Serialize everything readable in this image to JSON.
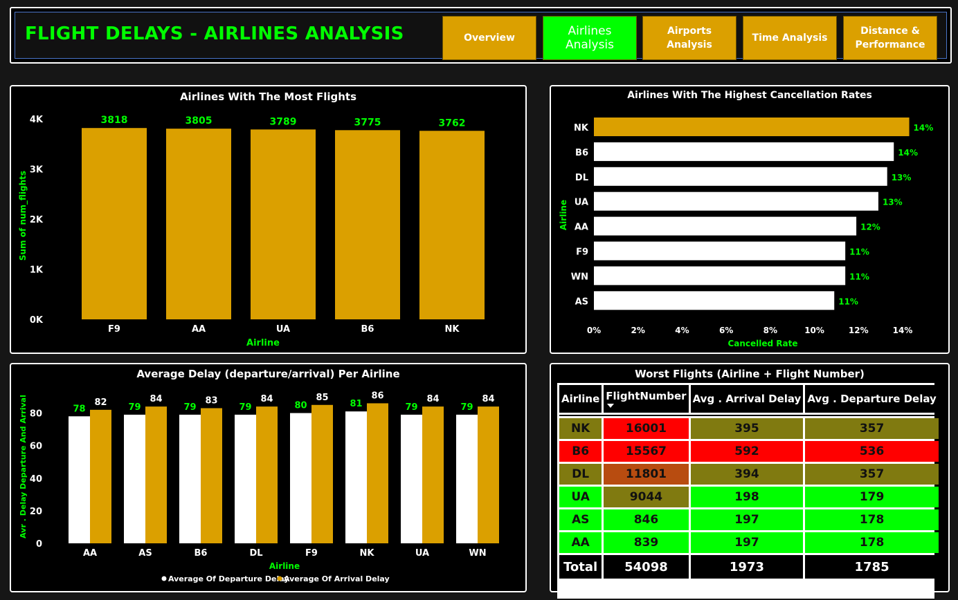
{
  "header": {
    "title": "FLIGHT DELAYS - AIRLINES ANALYSIS",
    "nav": [
      {
        "label": "Overview",
        "active": false
      },
      {
        "label": "Airlines Analysis",
        "active": true
      },
      {
        "label": "Airports Analysis",
        "active": false
      },
      {
        "label": "Time Analysis",
        "active": false
      },
      {
        "label": "Distance & Performance",
        "active": false
      }
    ]
  },
  "colors": {
    "accent": "#00ff00",
    "gold": "#dba000",
    "white": "#ffffff",
    "red": "#ff0000",
    "olive": "#807a10",
    "rust": "#b84c10"
  },
  "most_flights": {
    "title": "Airlines With The Most Flights",
    "chart_data": {
      "type": "bar",
      "categories": [
        "F9",
        "AA",
        "UA",
        "B6",
        "NK"
      ],
      "values": [
        3818,
        3805,
        3789,
        3775,
        3762
      ],
      "xlabel": "Airline",
      "ylabel": "Sum of num_flights",
      "ylim": [
        0,
        4000
      ],
      "yticks": [
        0,
        1000,
        2000,
        3000,
        4000
      ],
      "ytick_labels": [
        "0K",
        "1K",
        "2K",
        "3K",
        "4K"
      ],
      "grid": false
    }
  },
  "cancellation": {
    "title": "Airlines With The Highest Cancellation Rates",
    "chart_data": {
      "type": "bar",
      "orientation": "horizontal",
      "categories": [
        "NK",
        "B6",
        "DL",
        "UA",
        "AA",
        "F9",
        "WN",
        "AS"
      ],
      "values": [
        14.3,
        13.6,
        13.3,
        12.9,
        11.9,
        11.4,
        11.4,
        10.9
      ],
      "data_labels": [
        "14%",
        "14%",
        "13%",
        "13%",
        "12%",
        "11%",
        "11%",
        "11%"
      ],
      "xlabel": "Cancelled Rate",
      "ylabel": "Airline",
      "xlim": [
        0,
        14
      ],
      "xticks": [
        0,
        2,
        4,
        6,
        8,
        10,
        12,
        14
      ],
      "xtick_labels": [
        "0%",
        "2%",
        "4%",
        "6%",
        "8%",
        "10%",
        "12%",
        "14%"
      ],
      "grid": false
    }
  },
  "avg_delay": {
    "title": "Average Delay (departure/arrival) Per Airline",
    "chart_data": {
      "type": "bar",
      "categories": [
        "AA",
        "AS",
        "B6",
        "DL",
        "F9",
        "NK",
        "UA",
        "WN"
      ],
      "series": [
        {
          "name": "Average Of Departure Delay",
          "values": [
            78,
            79,
            79,
            79,
            80,
            81,
            79,
            79
          ]
        },
        {
          "name": "Average Of Arrival Delay",
          "values": [
            82,
            84,
            83,
            84,
            85,
            86,
            84,
            84
          ]
        }
      ],
      "xlabel": "Airline",
      "ylabel": "Avr . Delay Departure And Arrival",
      "ylim": [
        0,
        90
      ],
      "yticks": [
        0,
        20,
        40,
        60,
        80
      ],
      "legend": "bottom",
      "grid": false
    }
  },
  "worst_flights": {
    "title": "Worst Flights (Airline + Flight Number)",
    "columns": [
      "Airline",
      "FlightNumber",
      "Avg . Arrival Delay",
      "Avg . Departure Delay"
    ],
    "rows": [
      {
        "airline": "NK",
        "flight": "16001",
        "arr": "395",
        "dep": "357",
        "c_air": "#807a10",
        "c_fl": "#ff0000",
        "c_arr": "#807a10",
        "c_dep": "#807a10"
      },
      {
        "airline": "B6",
        "flight": "15567",
        "arr": "592",
        "dep": "536",
        "c_air": "#ff0000",
        "c_fl": "#ff0000",
        "c_arr": "#ff0000",
        "c_dep": "#ff0000"
      },
      {
        "airline": "DL",
        "flight": "11801",
        "arr": "394",
        "dep": "357",
        "c_air": "#807a10",
        "c_fl": "#b84c10",
        "c_arr": "#807a10",
        "c_dep": "#807a10"
      },
      {
        "airline": "UA",
        "flight": "9044",
        "arr": "198",
        "dep": "179",
        "c_air": "#00ff00",
        "c_fl": "#807a10",
        "c_arr": "#00ff00",
        "c_dep": "#00ff00"
      },
      {
        "airline": "AS",
        "flight": "846",
        "arr": "197",
        "dep": "178",
        "c_air": "#00ff00",
        "c_fl": "#00ff00",
        "c_arr": "#00ff00",
        "c_dep": "#00ff00"
      },
      {
        "airline": "AA",
        "flight": "839",
        "arr": "197",
        "dep": "178",
        "c_air": "#00ff00",
        "c_fl": "#00ff00",
        "c_arr": "#00ff00",
        "c_dep": "#00ff00"
      }
    ],
    "total": {
      "label": "Total",
      "flight": "54098",
      "arr": "1973",
      "dep": "1785"
    }
  }
}
